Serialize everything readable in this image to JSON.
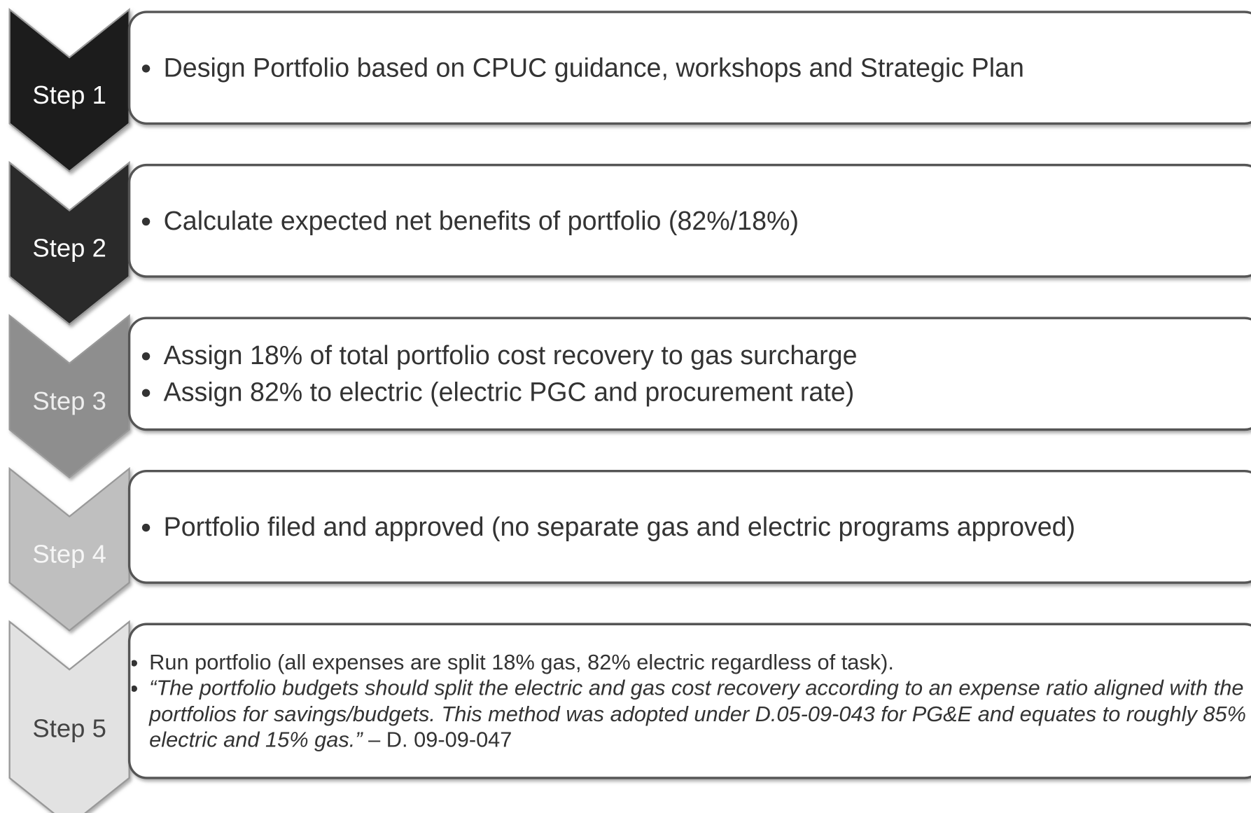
{
  "steps": [
    {
      "label": "Step 1",
      "bullets": [
        "Design Portfolio based on CPUC guidance, workshops and Strategic Plan"
      ]
    },
    {
      "label": "Step 2",
      "bullets": [
        "Calculate expected net benefits of portfolio (82%/18%)"
      ]
    },
    {
      "label": "Step 3",
      "bullets": [
        "Assign 18% of total portfolio cost recovery to gas surcharge",
        "Assign 82% to electric (electric PGC and procurement rate)"
      ]
    },
    {
      "label": "Step 4",
      "bullets": [
        "Portfolio filed and approved (no separate gas and electric programs approved)"
      ]
    },
    {
      "label": "Step 5",
      "bullets": [
        "Run portfolio (all expenses are split 18% gas, 82% electric regardless of task).",
        {
          "quote": "“The portfolio budgets should split the electric and gas cost recovery according to an expense ratio aligned with the portfolios for savings/budgets. This method was adopted under D.05-09-043 for PG&E and equates to roughly 85% electric and 15% gas.”",
          "source": "– D. 09-09-047"
        }
      ]
    }
  ]
}
